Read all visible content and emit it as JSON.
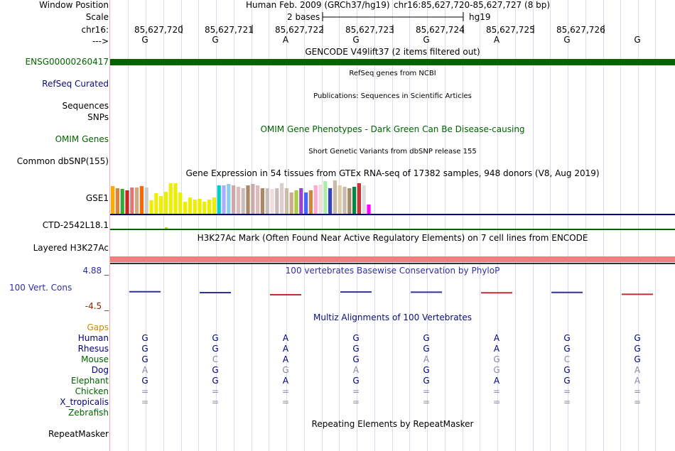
{
  "ruler": {
    "window_position_label": "Window Position",
    "scale_label": "Scale",
    "chrom_label": "chr16:",
    "strand_label": "--->",
    "assembly_text": "Human Feb. 2009 (GRCh37/hg19)",
    "position_text": "chr16:85,627,720-85,627,727 (8 bp)",
    "scale_text": "2 bases",
    "db_text": "hg19",
    "positions": [
      "85,627,720",
      "85,627,721",
      "85,627,722",
      "85,627,723",
      "85,627,724",
      "85,627,725",
      "85,627,726"
    ],
    "bases": [
      "G",
      "G",
      "A",
      "G",
      "G",
      "A",
      "G",
      "G"
    ]
  },
  "gencode": {
    "title": "GENCODE V49lift37 (2 items filtered out)",
    "gene_label": "ENSG00000260417",
    "color": "#006400"
  },
  "refseq": {
    "title": "RefSeq genes from NCBI",
    "label": "RefSeq Curated"
  },
  "publications": {
    "title": "Publications: Sequences in Scientific Articles",
    "label_sequences": "Sequences",
    "label_snps": "SNPs"
  },
  "omim": {
    "title": "OMIM Gene Phenotypes - Dark Green Can Be Disease-causing",
    "label": "OMIM Genes"
  },
  "dbsnp": {
    "title": "Short Genetic Variants from dbSNP release 155",
    "label": "Common dbSNP(155)"
  },
  "gtex": {
    "title": "Gene Expression in 54 tissues from GTEx RNA-seq of 17382 samples, 948 donors (V8, Aug 2019)",
    "label": "GSE1",
    "values": [
      0.85,
      0.79,
      0.75,
      0.72,
      0.8,
      0.8,
      0.85,
      0.8,
      0.42,
      0.62,
      0.55,
      0.68,
      0.93,
      0.93,
      0.65,
      0.38,
      0.5,
      0.43,
      0.46,
      0.38,
      0.43,
      0.5,
      0.86,
      0.86,
      0.92,
      0.86,
      0.82,
      0.79,
      0.86,
      0.92,
      0.86,
      0.79,
      0.79,
      0.75,
      0.79,
      0.93,
      0.79,
      0.65,
      0.72,
      0.79,
      0.65,
      0.72,
      0.86,
      0.9,
      1.0,
      0.79,
      1.02,
      0.86,
      0.82,
      0.79,
      0.82,
      0.93,
      0.86,
      0.28
    ],
    "colors": [
      "#ffaa00",
      "#e08040",
      "#33aa33",
      "#cc2222",
      "#dd7777",
      "#ccaa88",
      "#ff6600",
      "#cccccc",
      "#eeee00",
      "#eeee00",
      "#eeee00",
      "#eeee00",
      "#eeee00",
      "#eeee00",
      "#eeee00",
      "#eeee00",
      "#eeee00",
      "#eeee00",
      "#eeee00",
      "#eeee00",
      "#eeee00",
      "#eeee00",
      "#00cccc",
      "#aaaaff",
      "#88ccee",
      "#ccaaaa",
      "#ddbbbb",
      "#ccbbbb",
      "#aa8866",
      "#ccaaaa",
      "#ddbbbb",
      "#aa8866",
      "#ccbbbb",
      "#eedddd",
      "#ccbbbb",
      "#ddcccc",
      "#ccbbaa",
      "#ccaa88",
      "#aacc44",
      "#9944cc",
      "#4466ff",
      "#cc8833",
      "#ffaacc",
      "#eedddd",
      "#aaeeaa",
      "#3344bb",
      "#ccbbaa",
      "#ddccaa",
      "#ccbbaa",
      "#aa8866",
      "#008844",
      "#cc3333",
      "#dddddd",
      "#ff00ff"
    ]
  },
  "ctd": {
    "label": "CTD-2542L18.1"
  },
  "h3k27ac": {
    "title": "H3K27Ac Mark (Often Found Near Active Regulatory Elements) on 7 cell lines from ENCODE",
    "label": "Layered H3K27Ac"
  },
  "cons": {
    "title": "100 vertebrates Basewise Conservation by PhyloP",
    "label": "100 Vert. Cons",
    "max_label": "4.88 _",
    "min_label": "-4.5 _",
    "values": [
      0.2,
      0.0,
      -0.5,
      0.15,
      0.1,
      -0.05,
      0.05,
      -0.4
    ]
  },
  "multiz": {
    "title": "Multiz Alignments of 100 Vertebrates",
    "gaps_label": "Gaps",
    "species": [
      {
        "name": "Human",
        "bases": [
          "G",
          "G",
          "A",
          "G",
          "G",
          "A",
          "G",
          "G"
        ]
      },
      {
        "name": "Rhesus",
        "bases": [
          "G",
          "G",
          "A",
          "G",
          "G",
          "A",
          "G",
          "G"
        ]
      },
      {
        "name": "Mouse",
        "bases": [
          "G",
          "C",
          "A",
          "G",
          "A",
          "G",
          "C",
          "G"
        ]
      },
      {
        "name": "Dog",
        "bases": [
          "A",
          "G",
          "G",
          "A",
          "G",
          "G",
          "G",
          "A"
        ]
      },
      {
        "name": "Elephant",
        "bases": [
          "G",
          "G",
          "A",
          "G",
          "G",
          "A",
          "G",
          "A"
        ]
      },
      {
        "name": "Chicken",
        "bases": [
          "=",
          "=",
          "=",
          "=",
          "=",
          "=",
          "=",
          "="
        ]
      },
      {
        "name": "X_tropicalis",
        "bases": [
          "=",
          "=",
          "=",
          "=",
          "=",
          "=",
          "=",
          "="
        ]
      },
      {
        "name": "Zebrafish",
        "bases": [
          "",
          "",
          "",
          "",
          "",
          "",
          "",
          ""
        ]
      }
    ]
  },
  "repeatmasker": {
    "title": "Repeating Elements by RepeatMasker",
    "label": "RepeatMasker"
  },
  "colors": {
    "navy": "#000080",
    "dark_green": "#006400",
    "orange": "#cc8800",
    "brown": "#8b2500",
    "refseq": "#0c0c78",
    "dog_grey": "#8888aa",
    "cons_blue": "#3030a0",
    "h3k27ac_pink": "#f08080"
  }
}
